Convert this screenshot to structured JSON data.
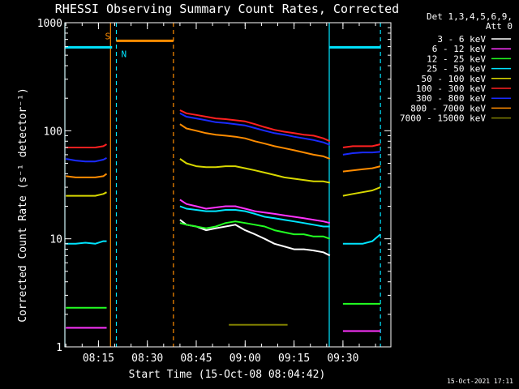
{
  "chart_data": {
    "type": "line",
    "title": "RHESSI Observing Summary Count Rates, Corrected",
    "xlabel": "Start Time (15-Oct-08 08:04:42)",
    "ylabel": "Corrected Count Rate (s⁻¹ detector⁻¹)",
    "yscale": "log",
    "ylim": [
      1,
      1000
    ],
    "xlim_min": [
      4.7,
      104.7
    ],
    "x_unit": "minutes after 08:00:00",
    "y_ticks": [
      "1",
      "10",
      "100",
      "1000"
    ],
    "x_ticks": [
      {
        "label": "08:15",
        "min": 15
      },
      {
        "label": "08:30",
        "min": 30
      },
      {
        "label": "08:45",
        "min": 45
      },
      {
        "label": "09:00",
        "min": 60
      },
      {
        "label": "09:15",
        "min": 75
      },
      {
        "label": "09:30",
        "min": 90
      }
    ],
    "legend_header": [
      "Det 1,3,4,5,6,9,",
      "Att 0"
    ],
    "legend_placement": "right",
    "timestamp": "15-Oct-2021 17:11",
    "flags": {
      "saa_label": "S",
      "night_label": "N",
      "saa_color": "#ff8c00",
      "night_color": "#00e5ff",
      "saa_bar_min": [
        20.5,
        38.0
      ],
      "night_bars_min": [
        [
          4.7,
          19.2
        ],
        [
          85.8,
          101.5
        ]
      ],
      "night_solid_lines_min": [
        4.7,
        85.8
      ],
      "night_dashed_lines_min": [
        20.5,
        101.5
      ],
      "saa_solid_lines_min": [
        18.7
      ],
      "saa_dashed_lines_min": [
        38.0
      ],
      "level": 680
    },
    "series": [
      {
        "name": "3 - 6 keV",
        "color": "#ffffff",
        "segments": [
          {
            "x": [
              5,
              8,
              11,
              14,
              16.5,
              17.5
            ],
            "y": [
              null,
              null,
              null,
              null,
              null,
              null
            ]
          },
          {
            "x": [
              40,
              42,
              45,
              48,
              51,
              54,
              57,
              60,
              63,
              66,
              69,
              72,
              75,
              78,
              81,
              84,
              86
            ],
            "y": [
              15,
              13.5,
              13,
              12,
              12.5,
              13,
              13.5,
              12,
              11,
              10,
              9,
              8.5,
              8,
              8,
              7.8,
              7.5,
              7
            ]
          }
        ]
      },
      {
        "name": "6 - 12 keV",
        "color": "#ff33ff",
        "segments": [
          {
            "x": [
              5,
              8,
              11,
              14,
              16.5,
              17.5
            ],
            "y": [
              1.5,
              1.5,
              1.5,
              1.5,
              1.5,
              1.5
            ]
          },
          {
            "x": [
              40,
              42,
              45,
              48,
              51,
              54,
              57,
              60,
              63,
              66,
              69,
              72,
              75,
              78,
              81,
              84,
              86
            ],
            "y": [
              23,
              21,
              20,
              19,
              19.5,
              20,
              20,
              19,
              18,
              17.5,
              17,
              16.5,
              16,
              15.5,
              15,
              14.5,
              14
            ]
          },
          {
            "x": [
              90,
              93,
              96,
              99,
              101.5
            ],
            "y": [
              1.4,
              1.4,
              1.4,
              1.4,
              1.4
            ]
          }
        ]
      },
      {
        "name": "12 - 25 keV",
        "color": "#22ff22",
        "segments": [
          {
            "x": [
              5,
              8,
              11,
              14,
              16.5,
              17.5
            ],
            "y": [
              2.3,
              2.3,
              2.3,
              2.3,
              2.3,
              2.3
            ]
          },
          {
            "x": [
              40,
              42,
              45,
              48,
              51,
              54,
              57,
              60,
              63,
              66,
              69,
              72,
              75,
              78,
              81,
              84,
              86
            ],
            "y": [
              14,
              13.5,
              13,
              12.5,
              13,
              14,
              14.5,
              14,
              13.5,
              13,
              12,
              11.5,
              11,
              11,
              10.5,
              10.5,
              10
            ]
          },
          {
            "x": [
              90,
              93,
              96,
              99,
              101.5
            ],
            "y": [
              2.5,
              2.5,
              2.5,
              2.5,
              2.5
            ]
          }
        ]
      },
      {
        "name": "25 - 50 keV",
        "color": "#00e5ff",
        "segments": [
          {
            "x": [
              5,
              8,
              11,
              14,
              16.5,
              17.5
            ],
            "y": [
              9,
              9,
              9.2,
              9,
              9.5,
              9.5
            ]
          },
          {
            "x": [
              40,
              42,
              45,
              48,
              51,
              54,
              57,
              60,
              63,
              66,
              69,
              72,
              75,
              78,
              81,
              84,
              86
            ],
            "y": [
              20,
              19,
              18.5,
              18,
              18,
              18.5,
              18.5,
              18,
              17,
              16,
              15.5,
              15,
              14.5,
              14,
              13.5,
              13,
              13
            ]
          },
          {
            "x": [
              90,
              93,
              96,
              99,
              101.5
            ],
            "y": [
              9,
              9,
              9,
              9.5,
              11
            ]
          }
        ]
      },
      {
        "name": "50 - 100 keV",
        "color": "#d8d800",
        "segments": [
          {
            "x": [
              5,
              8,
              11,
              14,
              16.5,
              17.5
            ],
            "y": [
              25,
              25,
              25,
              25,
              26,
              27
            ]
          },
          {
            "x": [
              40,
              42,
              45,
              48,
              51,
              54,
              57,
              60,
              63,
              66,
              69,
              72,
              75,
              78,
              81,
              84,
              86
            ],
            "y": [
              55,
              50,
              47,
              46,
              46,
              47,
              47,
              45,
              43,
              41,
              39,
              37,
              36,
              35,
              34,
              34,
              33
            ]
          },
          {
            "x": [
              90,
              93,
              96,
              99,
              101.5
            ],
            "y": [
              25,
              26,
              27,
              28,
              30
            ]
          }
        ]
      },
      {
        "name": "100 - 300 keV",
        "color": "#ff2020",
        "segments": [
          {
            "x": [
              5,
              8,
              11,
              14,
              16.5,
              17.5
            ],
            "y": [
              70,
              70,
              70,
              70,
              72,
              75
            ]
          },
          {
            "x": [
              40,
              42,
              45,
              48,
              51,
              54,
              57,
              60,
              63,
              66,
              69,
              72,
              75,
              78,
              81,
              84,
              86
            ],
            "y": [
              155,
              145,
              140,
              135,
              130,
              128,
              125,
              122,
              115,
              108,
              102,
              98,
              95,
              92,
              90,
              85,
              80
            ]
          },
          {
            "x": [
              90,
              93,
              96,
              99,
              101.5
            ],
            "y": [
              70,
              72,
              72,
              72,
              75
            ]
          }
        ]
      },
      {
        "name": "300 - 800 keV",
        "color": "#1a2bff",
        "segments": [
          {
            "x": [
              5,
              8,
              11,
              14,
              16.5,
              17.5
            ],
            "y": [
              55,
              53,
              52,
              52,
              54,
              56
            ]
          },
          {
            "x": [
              40,
              42,
              45,
              48,
              51,
              54,
              57,
              60,
              63,
              66,
              69,
              72,
              75,
              78,
              81,
              84,
              86
            ],
            "y": [
              145,
              135,
              130,
              125,
              120,
              118,
              115,
              112,
              106,
              100,
              95,
              92,
              88,
              85,
              82,
              78,
              74
            ]
          },
          {
            "x": [
              90,
              93,
              96,
              99,
              101.5
            ],
            "y": [
              60,
              62,
              63,
              63,
              64
            ]
          }
        ]
      },
      {
        "name": "800 - 7000 keV",
        "color": "#ff8c00",
        "segments": [
          {
            "x": [
              5,
              8,
              11,
              14,
              16.5,
              17.5
            ],
            "y": [
              38,
              37,
              37,
              37,
              38,
              40
            ]
          },
          {
            "x": [
              40,
              42,
              45,
              48,
              51,
              54,
              57,
              60,
              63,
              66,
              69,
              72,
              75,
              78,
              81,
              84,
              86
            ],
            "y": [
              115,
              105,
              100,
              95,
              92,
              90,
              88,
              85,
              80,
              76,
              72,
              69,
              66,
              63,
              60,
              58,
              55
            ]
          },
          {
            "x": [
              90,
              93,
              96,
              99,
              101.5
            ],
            "y": [
              42,
              43,
              44,
              45,
              47
            ]
          }
        ]
      },
      {
        "name": "7000 - 15000 keV",
        "color": "#808000",
        "segments": [
          {
            "x": [
              55,
              58,
              61,
              64,
              67,
              70,
              73
            ],
            "y": [
              1.6,
              1.6,
              1.6,
              1.6,
              1.6,
              1.6,
              1.6
            ]
          }
        ]
      }
    ]
  }
}
